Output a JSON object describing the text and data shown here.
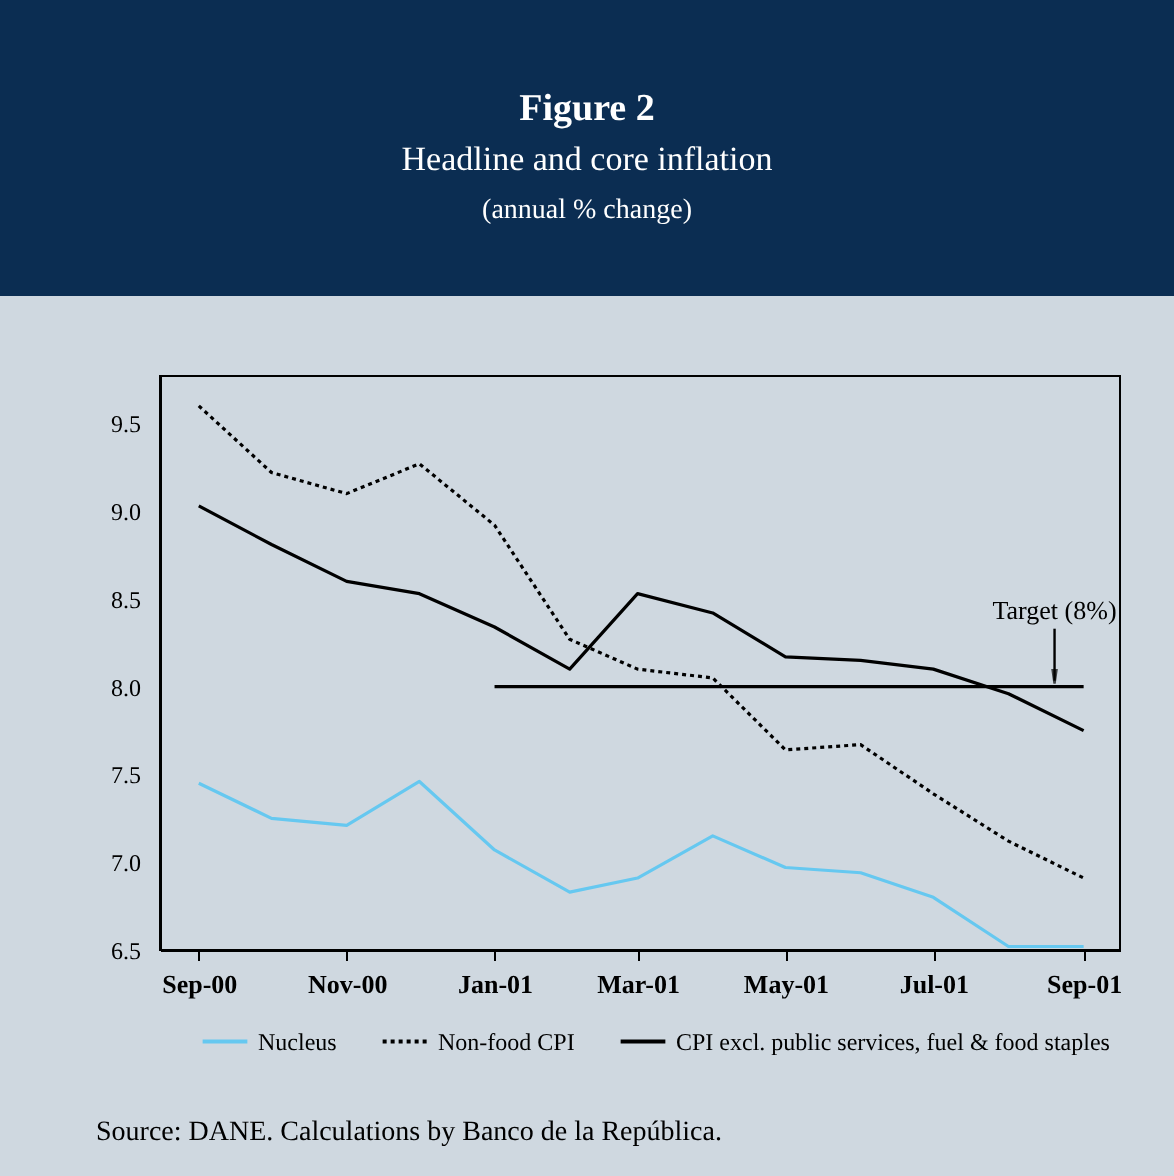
{
  "chart_data": {
    "type": "line",
    "title": "Figure 2",
    "subtitle": "Headline and core inflation",
    "x": [
      "2000-09",
      "2000-10",
      "2000-11",
      "2000-12",
      "2001-01",
      "2001-02",
      "2001-03",
      "2001-04",
      "2001-05",
      "2001-06",
      "2001-07",
      "2001-08",
      "2001-09"
    ],
    "series": [
      {
        "name": "Nucleus",
        "color": "#66c8f0",
        "line_style": "solid",
        "values": [
          7.45,
          7.25,
          7.21,
          7.46,
          7.07,
          6.83,
          6.91,
          7.15,
          6.97,
          6.94,
          6.8,
          6.52,
          6.52
        ]
      },
      {
        "name": "Non-food CPI",
        "color": "#000000",
        "line_style": "dotted",
        "values": [
          9.6,
          9.22,
          9.1,
          9.27,
          8.92,
          8.27,
          8.1,
          8.05,
          7.64,
          7.67,
          7.39,
          7.12,
          6.91
        ]
      },
      {
        "name": "CPI excl. public services, fuel & food staples",
        "color": "#000000",
        "line_style": "solid",
        "values": [
          9.03,
          8.81,
          8.6,
          8.53,
          8.34,
          8.1,
          8.53,
          8.42,
          8.17,
          8.15,
          8.1,
          7.96,
          7.75
        ]
      },
      {
        "color": "#000000",
        "line_style": "solid",
        "x": [
          "2001-01",
          "2001-09"
        ],
        "values": [
          8.0,
          8.0
        ]
      }
    ],
    "xlim": [
      "2000-08-16",
      "2001-09-16"
    ],
    "xticks": [
      {
        "value": "2000-09",
        "label": "Sep-00"
      },
      {
        "value": "2000-11",
        "label": "Nov-00"
      },
      {
        "value": "2001-01",
        "label": "Jan-01"
      },
      {
        "value": "2001-03",
        "label": "Mar-01"
      },
      {
        "value": "2001-05",
        "label": "May-01"
      },
      {
        "value": "2001-07",
        "label": "Jul-01"
      },
      {
        "value": "2001-09",
        "label": "Sep-01"
      }
    ],
    "ylim": [
      6.5,
      9.77
    ],
    "yticks": [
      {
        "value": 6.5,
        "label": "6.5"
      },
      {
        "value": 7,
        "label": "7.0"
      },
      {
        "value": 7.5,
        "label": "7.5"
      },
      {
        "value": 8,
        "label": "8.0"
      },
      {
        "value": 8.5,
        "label": "8.5"
      },
      {
        "value": 9,
        "label": "9.0"
      },
      {
        "value": 9.5,
        "label": "9.5"
      }
    ],
    "grid": false,
    "legend": "bottom",
    "marker": "none",
    "annotations": [
      "(annual % change)",
      {
        "text": "Target (8%)",
        "x": "2001-08-20",
        "y": 8.0
      },
      "Source: DANE. Calculations by Banco de la República."
    ]
  }
}
